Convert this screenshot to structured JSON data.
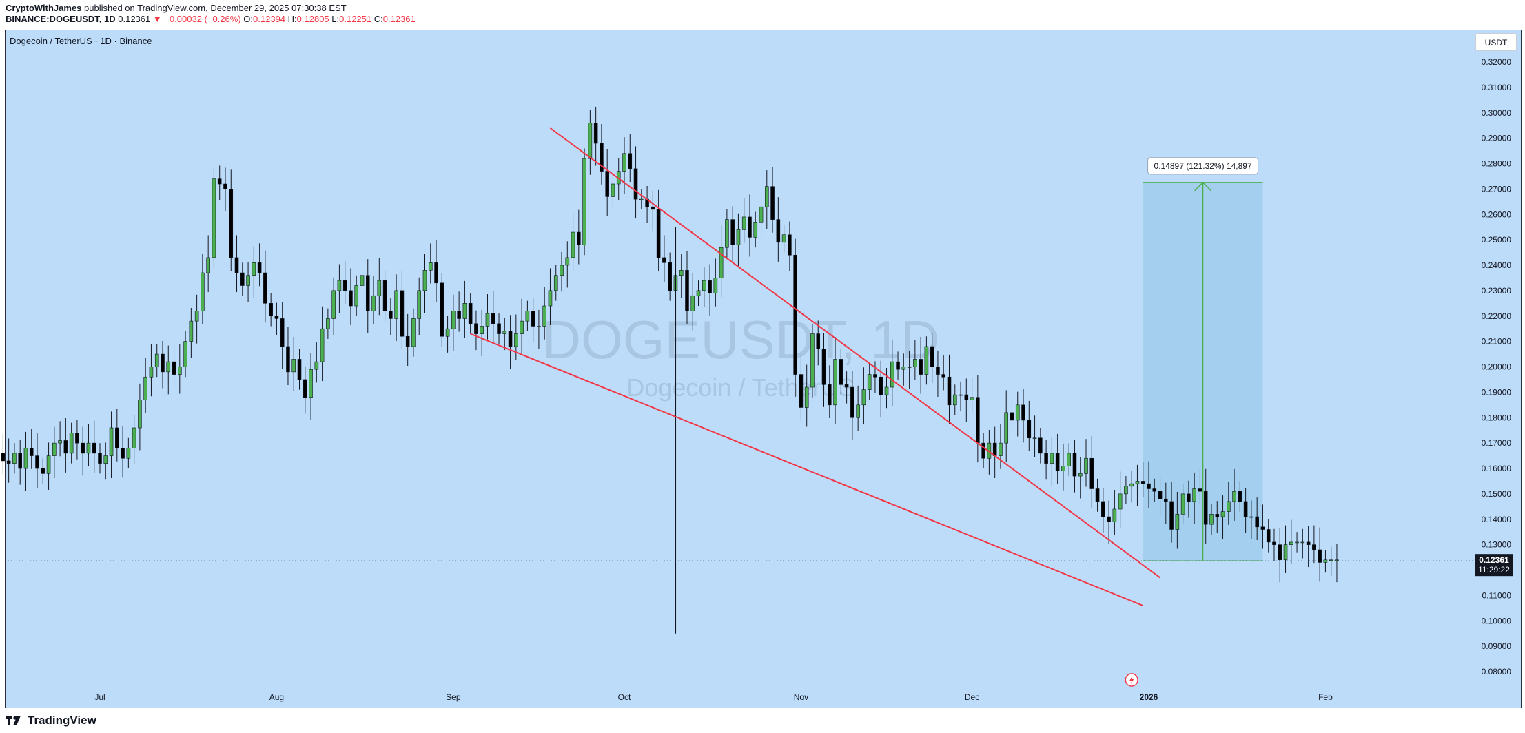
{
  "header": {
    "author": "CryptoWithJames",
    "published_text": " published on TradingView.com, December 29, 2025 07:30:38 EST",
    "symbol": "BINANCE:DOGEUSDT, 1D",
    "last": "0.12361",
    "change": "▼ −0.00032 (−0.26%)",
    "o_label": "O:",
    "o_value": "0.12394",
    "h_label": "H:",
    "h_value": "0.12805",
    "l_label": "L:",
    "l_value": "0.12251",
    "c_label": "C:",
    "c_value": "0.12361"
  },
  "chart_title": "Dogecoin / TetherUS · 1D · Binance",
  "currency_button": "USDT",
  "watermark": {
    "symbol": "DOGEUSDT, 1D",
    "name": "Dogecoin / TetherUS"
  },
  "price_tag": {
    "price": "0.12361",
    "countdown": "11:29:22"
  },
  "measure_label": "0.14897 (121.32%) 14,897",
  "footer_brand": "TradingView",
  "colors": {
    "background": "#bcdcfa",
    "up": "#4caf50",
    "down": "#000000",
    "trendline": "#f23645",
    "target_box": "#a1cdec",
    "target_arrow": "#4caf50"
  },
  "chart_data": {
    "type": "candlestick",
    "title": "Dogecoin / TetherUS · 1D · Binance",
    "ylim": [
      0.075,
      0.325
    ],
    "y_ticks": [
      "0.32000",
      "0.31000",
      "0.30000",
      "0.29000",
      "0.28000",
      "0.27000",
      "0.26000",
      "0.25000",
      "0.24000",
      "0.23000",
      "0.22000",
      "0.21000",
      "0.20000",
      "0.19000",
      "0.18000",
      "0.17000",
      "0.16000",
      "0.15000",
      "0.14000",
      "0.13000",
      "0.12000",
      "0.11000",
      "0.10000",
      "0.09000",
      "0.08000"
    ],
    "x_ticks": [
      "Jul",
      "Aug",
      "Sep",
      "Oct",
      "Nov",
      "Dec",
      "2026",
      "Feb"
    ],
    "x_range_days": [
      "2025-06-01",
      "2026-02-20"
    ],
    "x_tick_dates": [
      "2025-07-01",
      "2025-08-01",
      "2025-09-01",
      "2025-10-01",
      "2025-11-01",
      "2025-12-01",
      "2026-01-01",
      "2026-02-01"
    ],
    "start_date": "2025-06-01",
    "closes": [
      0.179,
      0.181,
      0.176,
      0.172,
      0.169,
      0.173,
      0.168,
      0.163,
      0.154,
      0.149,
      0.155,
      0.165,
      0.166,
      0.163,
      0.162,
      0.166,
      0.16,
      0.168,
      0.165,
      0.16,
      0.158,
      0.165,
      0.17,
      0.171,
      0.166,
      0.174,
      0.17,
      0.166,
      0.17,
      0.166,
      0.162,
      0.165,
      0.176,
      0.168,
      0.164,
      0.168,
      0.176,
      0.187,
      0.196,
      0.2,
      0.205,
      0.198,
      0.202,
      0.197,
      0.2,
      0.21,
      0.218,
      0.222,
      0.237,
      0.243,
      0.274,
      0.272,
      0.27,
      0.243,
      0.237,
      0.232,
      0.236,
      0.241,
      0.237,
      0.225,
      0.22,
      0.219,
      0.208,
      0.198,
      0.203,
      0.195,
      0.188,
      0.199,
      0.202,
      0.215,
      0.219,
      0.23,
      0.234,
      0.23,
      0.224,
      0.232,
      0.236,
      0.222,
      0.228,
      0.234,
      0.222,
      0.219,
      0.23,
      0.212,
      0.208,
      0.219,
      0.23,
      0.238,
      0.241,
      0.233,
      0.212,
      0.215,
      0.222,
      0.219,
      0.225,
      0.217,
      0.213,
      0.216,
      0.221,
      0.217,
      0.213,
      0.214,
      0.208,
      0.213,
      0.218,
      0.222,
      0.216,
      0.216,
      0.224,
      0.23,
      0.236,
      0.24,
      0.243,
      0.253,
      0.248,
      0.282,
      0.296,
      0.288,
      0.277,
      0.267,
      0.272,
      0.277,
      0.284,
      0.278,
      0.266,
      0.266,
      0.263,
      0.262,
      0.243,
      0.241,
      0.23,
      0.236,
      0.238,
      0.222,
      0.228,
      0.23,
      0.234,
      0.229,
      0.235,
      0.247,
      0.258,
      0.248,
      0.254,
      0.259,
      0.251,
      0.257,
      0.263,
      0.271,
      0.258,
      0.249,
      0.252,
      0.244,
      0.197,
      0.184,
      0.192,
      0.213,
      0.207,
      0.193,
      0.185,
      0.203,
      0.193,
      0.192,
      0.18,
      0.185,
      0.191,
      0.197,
      0.196,
      0.189,
      0.192,
      0.202,
      0.199,
      0.2,
      0.2,
      0.203,
      0.197,
      0.208,
      0.2,
      0.197,
      0.196,
      0.185,
      0.189,
      0.189,
      0.187,
      0.188,
      0.17,
      0.164,
      0.17,
      0.165,
      0.17,
      0.182,
      0.179,
      0.185,
      0.179,
      0.172,
      0.172,
      0.166,
      0.162,
      0.166,
      0.159,
      0.161,
      0.166,
      0.157,
      0.158,
      0.164,
      0.152,
      0.147,
      0.141,
      0.139,
      0.144,
      0.15,
      0.153,
      0.154,
      0.155,
      0.154,
      0.152,
      0.151,
      0.148,
      0.147,
      0.136,
      0.142,
      0.15,
      0.147,
      0.152,
      0.151,
      0.138,
      0.142,
      0.141,
      0.143,
      0.147,
      0.151,
      0.147,
      0.141,
      0.141,
      0.137,
      0.136,
      0.131,
      0.13,
      0.124,
      0.13,
      0.131,
      0.131,
      0.131,
      0.13,
      0.128,
      0.123,
      0.124,
      0.124,
      0.124
    ],
    "last_close": 0.12361,
    "trendlines": [
      {
        "name": "upper",
        "from": [
          "2025-09-18",
          0.294
        ],
        "to": [
          "2026-01-03",
          0.117
        ]
      },
      {
        "name": "lower",
        "from": [
          "2025-09-04",
          0.213
        ],
        "to": [
          "2025-12-31",
          0.106
        ]
      }
    ],
    "target": {
      "from_date": "2025-12-31",
      "to_date": "2026-01-21",
      "low": 0.12361,
      "high": 0.27258,
      "change": 0.14897,
      "percent": 121.32
    }
  }
}
